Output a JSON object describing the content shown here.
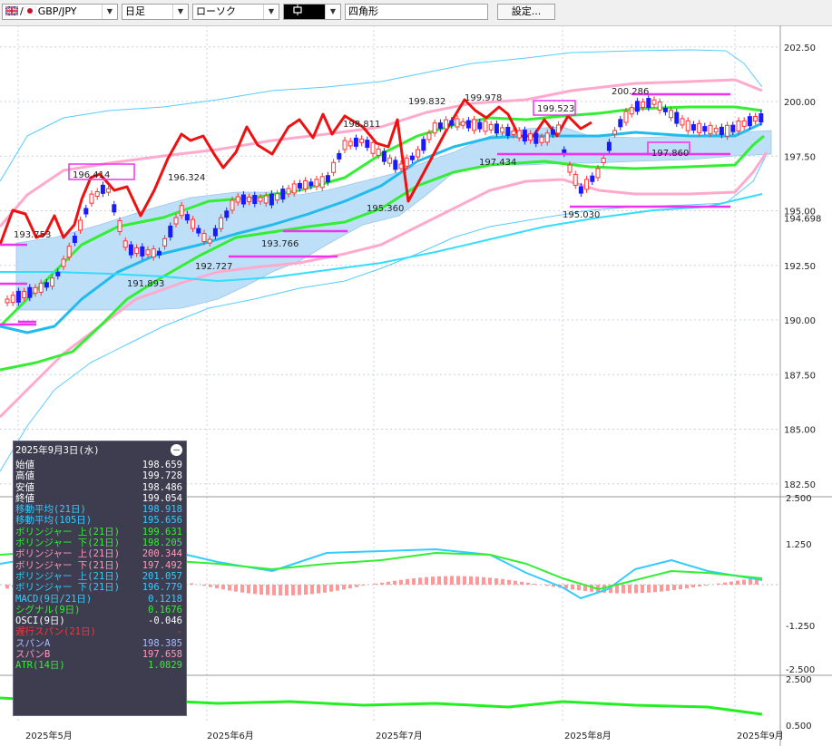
{
  "toolbar": {
    "symbol": "GBP/JPY",
    "timeframe": "日足",
    "chart_style": "ローソク",
    "draw_tool": "四角形",
    "settings_label": "設定..."
  },
  "price_axis": {
    "labels": [
      "202.50",
      "200.00",
      "197.50",
      "195.00",
      "194.698",
      "192.50",
      "190.00",
      "187.50",
      "185.00",
      "182.50"
    ],
    "current_price": "194.698"
  },
  "macd_axis": {
    "labels": [
      "2.500",
      "1.250",
      "-1.250",
      "-2.500"
    ]
  },
  "atr_axis": {
    "labels": [
      "2.500",
      "0.500"
    ]
  },
  "date_axis": {
    "labels": [
      "2025年5月",
      "2025年6月",
      "2025年7月",
      "2025年8月",
      "2025年9月"
    ]
  },
  "annotations": {
    "prices": [
      "193.753",
      "196.414",
      "196.324",
      "191.893",
      "192.727",
      "193.766",
      "198.811",
      "195.360",
      "199.832",
      "199.978",
      "197.434",
      "199.523",
      "195.030",
      "200.286",
      "197.860"
    ]
  },
  "data_panel": {
    "date": "2025年9月3日(水)",
    "rows": [
      {
        "label": "始値",
        "value": "198.659",
        "color": "#ffffff"
      },
      {
        "label": "高値",
        "value": "199.728",
        "color": "#ffffff"
      },
      {
        "label": "安値",
        "value": "198.486",
        "color": "#ffffff"
      },
      {
        "label": "終値",
        "value": "199.054",
        "color": "#ffffff"
      },
      {
        "label": "移動平均(21日)",
        "value": "198.918",
        "color": "#33ccff"
      },
      {
        "label": "移動平均(105日)",
        "value": "195.656",
        "color": "#33ccff"
      },
      {
        "label": "ボリンジャー 上(21日)",
        "value": "199.631",
        "color": "#33ee33"
      },
      {
        "label": "ボリンジャー 下(21日)",
        "value": "198.205",
        "color": "#33ee33"
      },
      {
        "label": "ボリンジャー 上(21日)",
        "value": "200.344",
        "color": "#ff99bb"
      },
      {
        "label": "ボリンジャー 下(21日)",
        "value": "197.492",
        "color": "#ff99bb"
      },
      {
        "label": "ボリンジャー 上(21日)",
        "value": "201.057",
        "color": "#33ccff"
      },
      {
        "label": "ボリンジャー 下(21日)",
        "value": "196.779",
        "color": "#33ccff"
      },
      {
        "label": "MACD(9日/21日)",
        "value": "0.1218",
        "color": "#33ccff"
      },
      {
        "label": "シグナル(9日)",
        "value": "0.1676",
        "color": "#33ee33"
      },
      {
        "label": "OSCI(9日)",
        "value": "-0.046",
        "color": "#ffffff"
      },
      {
        "label": "遅行スパン(21日)",
        "value": "-",
        "color": "#ff3333"
      },
      {
        "label": "スパンA",
        "value": "198.385",
        "color": "#aabbff"
      },
      {
        "label": "スパンB",
        "value": "197.658",
        "color": "#ff99bb"
      },
      {
        "label": "ATR(14日)",
        "value": "1.0829",
        "color": "#33ee33"
      }
    ]
  },
  "colors": {
    "bull_candle": "#ff3333",
    "bear_candle": "#1a1aff",
    "ma_short": "#22bbee",
    "ma_long": "#33ddff",
    "bb1": "#33ee33",
    "bb2": "#ffaacc",
    "bb3": "#55ccff",
    "lagging_span": "#ee1111",
    "cloud": "#b8dcf8",
    "rectangle": "#ee33ee",
    "macd": "#33ccff",
    "signal": "#33ee33",
    "osci": "#ff9999",
    "atr": "#22ee22"
  }
}
